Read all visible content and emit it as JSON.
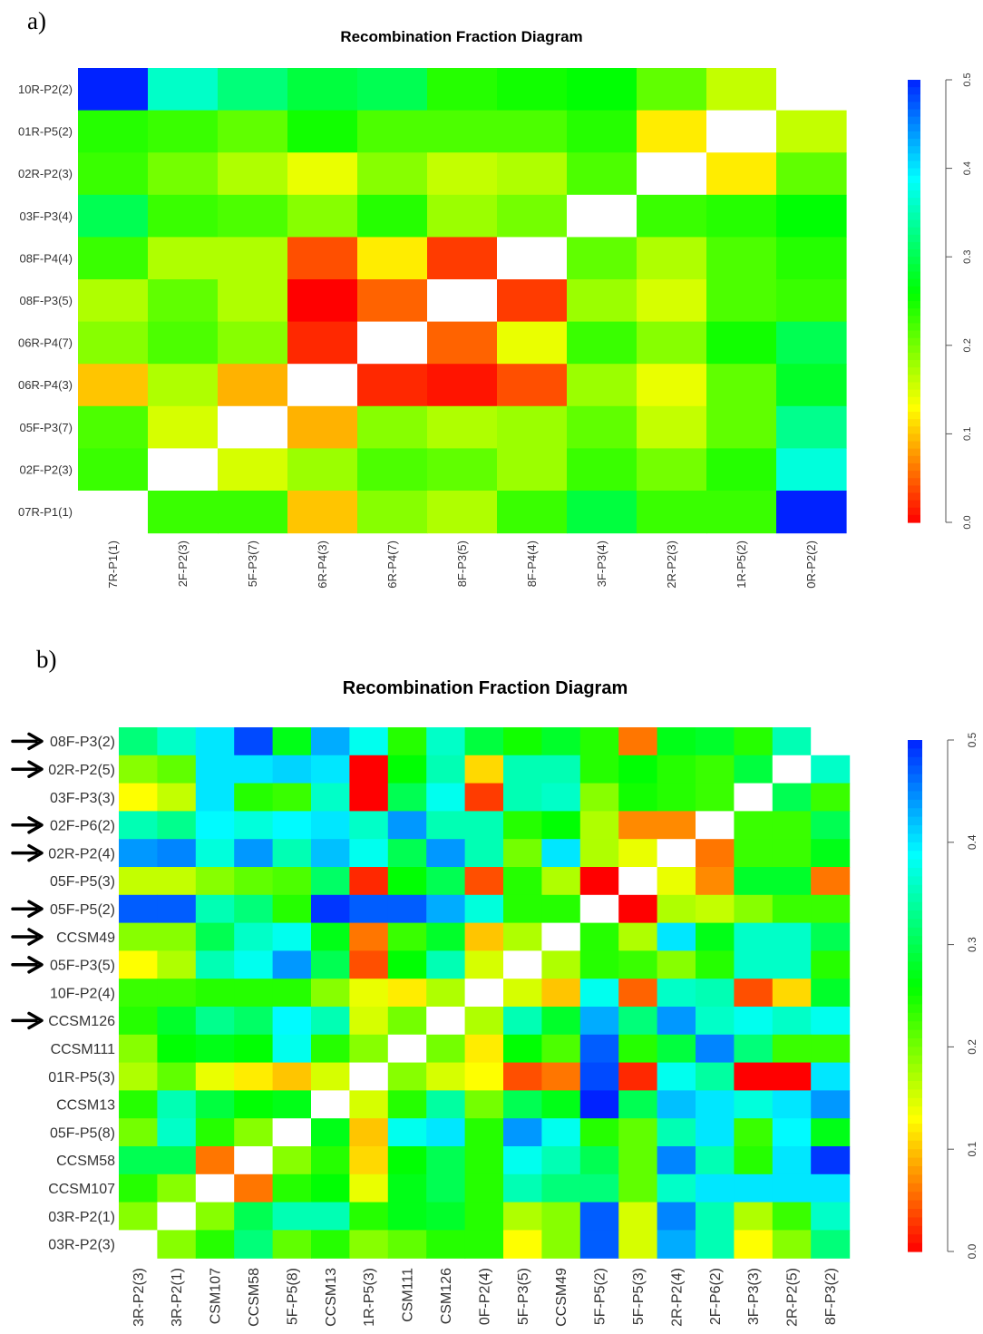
{
  "panels": [
    {
      "letter": "a)",
      "title": "Recombination Fraction Diagram"
    },
    {
      "letter": "b)",
      "title": "Recombination Fraction Diagram"
    }
  ],
  "colors": {
    "arrow": "#000000",
    "diagonal": "#ffffff"
  },
  "chart_data": [
    {
      "type": "heatmap",
      "title": "Recombination Fraction Diagram",
      "row_labels_top_to_bottom": [
        "10R-P2(2)",
        "01R-P5(2)",
        "02R-P2(3)",
        "03F-P3(4)",
        "08F-P4(4)",
        "08F-P3(5)",
        "06R-P4(7)",
        "06R-P4(3)",
        "05F-P3(7)",
        "02F-P2(3)",
        "07R-P1(1)"
      ],
      "column_labels_left_to_right": [
        "7R-P1(1)",
        "2F-P2(3)",
        "5F-P3(7)",
        "6R-P4(3)",
        "6R-P4(7)",
        "8F-P3(5)",
        "8F-P4(4)",
        "3F-P3(4)",
        "2R-P2(3)",
        "1R-P5(2)",
        "0R-P2(2)"
      ],
      "values": [
        [
          0.5,
          0.36,
          0.32,
          0.29,
          0.3,
          0.24,
          0.25,
          0.26,
          0.21,
          0.16,
          null
        ],
        [
          0.24,
          0.23,
          0.21,
          0.25,
          0.22,
          0.22,
          0.22,
          0.24,
          0.12,
          null,
          0.16
        ],
        [
          0.23,
          0.2,
          0.17,
          0.14,
          0.19,
          0.16,
          0.17,
          0.22,
          null,
          0.12,
          0.21
        ],
        [
          0.3,
          0.23,
          0.22,
          0.19,
          0.24,
          0.18,
          0.2,
          null,
          0.23,
          0.24,
          0.26
        ],
        [
          0.23,
          0.17,
          0.17,
          0.04,
          0.12,
          0.03,
          null,
          0.21,
          0.17,
          0.22,
          0.24
        ],
        [
          0.17,
          0.21,
          0.17,
          0.0,
          0.05,
          null,
          0.03,
          0.18,
          0.15,
          0.22,
          0.23
        ],
        [
          0.19,
          0.22,
          0.19,
          0.02,
          null,
          0.05,
          0.14,
          0.23,
          0.19,
          0.25,
          0.3
        ],
        [
          0.1,
          0.17,
          0.09,
          null,
          0.02,
          0.01,
          0.04,
          0.18,
          0.14,
          0.21,
          0.28
        ],
        [
          0.22,
          0.15,
          null,
          0.09,
          0.19,
          0.17,
          0.18,
          0.21,
          0.16,
          0.21,
          0.33
        ],
        [
          0.23,
          null,
          0.15,
          0.18,
          0.22,
          0.21,
          0.18,
          0.23,
          0.2,
          0.24,
          0.37
        ],
        [
          null,
          0.23,
          0.23,
          0.1,
          0.19,
          0.17,
          0.23,
          0.29,
          0.23,
          0.23,
          0.5
        ]
      ],
      "colorbar": {
        "range": [
          0,
          0.5
        ],
        "ticks": [
          "0.0",
          "0.1",
          "0.2",
          "0.3",
          "0.4",
          "0.5"
        ],
        "low_color": "red",
        "high_color": "blue",
        "placement": "right"
      }
    },
    {
      "type": "heatmap",
      "title": "Recombination Fraction Diagram",
      "row_labels_top_to_bottom": [
        "08F-P3(2)",
        "02R-P2(5)",
        "03F-P3(3)",
        "02F-P6(2)",
        "02R-P2(4)",
        "05F-P5(3)",
        "05F-P5(2)",
        "CCSM49",
        "05F-P3(5)",
        "10F-P2(4)",
        "CCSM126",
        "CCSM111",
        "01R-P5(3)",
        "CCSM13",
        "05F-P5(8)",
        "CCSM58",
        "CCSM107",
        "03R-P2(1)",
        "03R-P2(3)"
      ],
      "arrow_rows": [
        0,
        1,
        3,
        4,
        6,
        7,
        8,
        10
      ],
      "column_labels_left_to_right": [
        "3R-P2(3)",
        "3R-P2(1)",
        "CSM107",
        "CCSM58",
        "5F-P5(8)",
        "CCSM13",
        "1R-P5(3)",
        "CSM111",
        "CSM126",
        "0F-P2(4)",
        "5F-P3(5)",
        "CCSM49",
        "5F-P5(2)",
        "5F-P5(3)",
        "2R-P2(4)",
        "2F-P6(2)",
        "3F-P3(3)",
        "2R-P2(5)",
        "8F-P3(2)"
      ],
      "values": [
        [
          0.32,
          0.36,
          0.4,
          0.48,
          0.27,
          0.43,
          0.38,
          0.24,
          0.36,
          0.29,
          0.25,
          0.28,
          0.24,
          0.06,
          0.27,
          0.28,
          0.24,
          0.35,
          null
        ],
        [
          0.19,
          0.21,
          0.4,
          0.4,
          0.41,
          0.4,
          0.0,
          0.26,
          0.35,
          0.11,
          0.35,
          0.35,
          0.24,
          0.26,
          0.24,
          0.23,
          0.29,
          null,
          0.36
        ],
        [
          0.13,
          0.16,
          0.4,
          0.24,
          0.23,
          0.36,
          0.0,
          0.3,
          0.38,
          0.03,
          0.35,
          0.36,
          0.19,
          0.25,
          0.24,
          0.23,
          null,
          0.3,
          0.23
        ],
        [
          0.35,
          0.33,
          0.39,
          0.37,
          0.39,
          0.4,
          0.36,
          0.44,
          0.35,
          0.35,
          0.24,
          0.26,
          0.17,
          0.07,
          0.07,
          null,
          0.23,
          0.23,
          0.3
        ],
        [
          0.44,
          0.45,
          0.37,
          0.44,
          0.35,
          0.42,
          0.38,
          0.3,
          0.44,
          0.35,
          0.2,
          0.4,
          0.17,
          0.14,
          null,
          0.06,
          0.23,
          0.23,
          0.27
        ],
        [
          0.16,
          0.16,
          0.19,
          0.21,
          0.22,
          0.31,
          0.02,
          0.26,
          0.3,
          0.04,
          0.24,
          0.17,
          0.0,
          null,
          0.14,
          0.07,
          0.28,
          0.28,
          0.06
        ],
        [
          0.47,
          0.47,
          0.35,
          0.32,
          0.24,
          0.49,
          0.47,
          0.47,
          0.43,
          0.37,
          0.24,
          0.24,
          null,
          0.0,
          0.17,
          0.16,
          0.19,
          0.23,
          0.23
        ],
        [
          0.19,
          0.19,
          0.3,
          0.36,
          0.38,
          0.27,
          0.06,
          0.23,
          0.28,
          0.1,
          0.17,
          null,
          0.24,
          0.17,
          0.4,
          0.27,
          0.36,
          0.36,
          0.3
        ],
        [
          0.13,
          0.17,
          0.35,
          0.38,
          0.44,
          0.3,
          0.04,
          0.26,
          0.35,
          0.15,
          null,
          0.17,
          0.24,
          0.23,
          0.19,
          0.24,
          0.36,
          0.36,
          0.24
        ],
        [
          0.23,
          0.23,
          0.24,
          0.24,
          0.24,
          0.19,
          0.14,
          0.12,
          0.17,
          null,
          0.15,
          0.1,
          0.38,
          0.05,
          0.36,
          0.35,
          0.04,
          0.11,
          0.28
        ],
        [
          0.24,
          0.28,
          0.33,
          0.31,
          0.39,
          0.35,
          0.15,
          0.2,
          null,
          0.17,
          0.35,
          0.28,
          0.43,
          0.32,
          0.44,
          0.36,
          0.38,
          0.36,
          0.38
        ],
        [
          0.19,
          0.26,
          0.27,
          0.26,
          0.38,
          0.24,
          0.19,
          null,
          0.2,
          0.12,
          0.26,
          0.22,
          0.47,
          0.24,
          0.29,
          0.45,
          0.32,
          0.23,
          0.23
        ],
        [
          0.17,
          0.21,
          0.14,
          0.12,
          0.1,
          0.15,
          null,
          0.19,
          0.15,
          0.13,
          0.04,
          0.06,
          0.48,
          0.02,
          0.38,
          0.34,
          0.0,
          0.0,
          0.4
        ],
        [
          0.24,
          0.35,
          0.29,
          0.26,
          0.27,
          null,
          0.15,
          0.24,
          0.34,
          0.2,
          0.3,
          0.27,
          0.5,
          0.3,
          0.42,
          0.4,
          0.37,
          0.4,
          0.44
        ],
        [
          0.2,
          0.36,
          0.24,
          0.19,
          null,
          0.27,
          0.1,
          0.38,
          0.4,
          0.24,
          0.44,
          0.38,
          0.24,
          0.21,
          0.35,
          0.4,
          0.23,
          0.39,
          0.27
        ],
        [
          0.3,
          0.3,
          0.06,
          null,
          0.19,
          0.24,
          0.11,
          0.26,
          0.3,
          0.24,
          0.38,
          0.35,
          0.3,
          0.21,
          0.45,
          0.35,
          0.24,
          0.4,
          0.49
        ],
        [
          0.24,
          0.19,
          null,
          0.06,
          0.24,
          0.26,
          0.14,
          0.27,
          0.3,
          0.24,
          0.35,
          0.32,
          0.32,
          0.21,
          0.36,
          0.4,
          0.4,
          0.4,
          0.4
        ],
        [
          0.19,
          null,
          0.19,
          0.3,
          0.35,
          0.35,
          0.24,
          0.27,
          0.28,
          0.24,
          0.17,
          0.19,
          0.47,
          0.15,
          0.45,
          0.35,
          0.17,
          0.23,
          0.36
        ],
        [
          null,
          0.19,
          0.24,
          0.32,
          0.21,
          0.24,
          0.19,
          0.21,
          0.24,
          0.24,
          0.13,
          0.19,
          0.47,
          0.15,
          0.43,
          0.35,
          0.13,
          0.19,
          0.32
        ]
      ],
      "colorbar": {
        "range": [
          0,
          0.5
        ],
        "ticks": [
          "0.0",
          "0.1",
          "0.2",
          "0.3",
          "0.4",
          "0.5"
        ],
        "low_color": "red",
        "high_color": "blue",
        "placement": "right"
      }
    }
  ]
}
